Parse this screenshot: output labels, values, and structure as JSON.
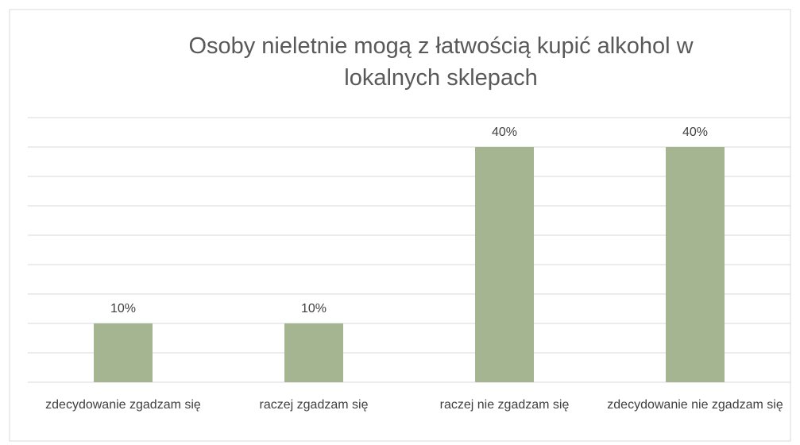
{
  "chart_data": {
    "type": "bar",
    "title": "Osoby nieletnie mogą z łatwością kupić alkohol w lokalnych sklepach",
    "categories": [
      "zdecydowanie zgadzam się",
      "raczej zgadzam się",
      "raczej nie zgadzam się",
      "zdecydowanie nie zgadzam się"
    ],
    "values": [
      10,
      10,
      40,
      40
    ],
    "value_labels": [
      "10%",
      "10%",
      "40%",
      "40%"
    ],
    "color": "#a5b592",
    "ylim": [
      0,
      45
    ],
    "yticks": [
      0,
      5,
      10,
      15,
      20,
      25,
      30,
      35,
      40,
      45
    ],
    "grid": true
  }
}
